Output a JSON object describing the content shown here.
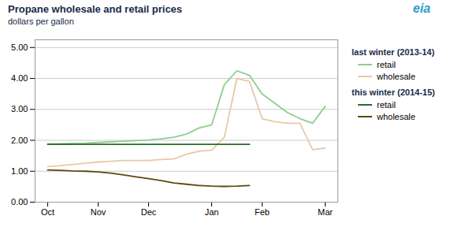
{
  "chart_data": {
    "type": "line",
    "title": "Propane wholesale and retail prices",
    "subtitle": "dollars per gallon",
    "annotation": "eia",
    "categories": [
      "Oct",
      null,
      null,
      null,
      "Nov",
      null,
      null,
      null,
      "Dec",
      null,
      null,
      null,
      null,
      "Jan",
      null,
      null,
      null,
      "Feb",
      null,
      null,
      null,
      null,
      "Mar"
    ],
    "series": [
      {
        "name": "retail",
        "group": "last winter (2013-14)",
        "color": "#8fce8f",
        "values": [
          1.88,
          1.89,
          1.9,
          1.91,
          1.93,
          1.95,
          1.97,
          1.99,
          2.01,
          2.05,
          2.1,
          2.2,
          2.4,
          2.5,
          3.8,
          4.25,
          4.1,
          3.5,
          3.2,
          2.9,
          2.7,
          2.55,
          3.1
        ]
      },
      {
        "name": "wholesale",
        "group": "last winter (2013-14)",
        "color": "#e8c8a8",
        "values": [
          1.15,
          1.18,
          1.22,
          1.26,
          1.3,
          1.32,
          1.35,
          1.35,
          1.35,
          1.38,
          1.4,
          1.55,
          1.65,
          1.68,
          2.1,
          4.0,
          3.9,
          2.7,
          2.6,
          2.55,
          2.55,
          1.7,
          1.75
        ]
      },
      {
        "name": "retail",
        "group": "this winter (2014-15)",
        "color": "#2d6b2d",
        "values": [
          1.87,
          1.87,
          1.87,
          1.87,
          1.87,
          1.87,
          1.87,
          1.87,
          1.87,
          1.87,
          1.87,
          1.87,
          1.87,
          1.87,
          1.87,
          1.87,
          1.87,
          null,
          null,
          null,
          null,
          null,
          null
        ]
      },
      {
        "name": "wholesale",
        "group": "this winter (2014-15)",
        "color": "#5a4a10",
        "values": [
          1.04,
          1.03,
          1.01,
          1.0,
          0.98,
          0.94,
          0.88,
          0.82,
          0.76,
          0.7,
          0.62,
          0.58,
          0.54,
          0.52,
          0.51,
          0.52,
          0.54,
          null,
          null,
          null,
          null,
          null,
          null
        ]
      }
    ],
    "ylim": [
      0.0,
      5.25
    ],
    "yticks": [
      {
        "value": 0.0,
        "label": "0.00"
      },
      {
        "value": 1.0,
        "label": "1.00"
      },
      {
        "value": 2.0,
        "label": "2.00"
      },
      {
        "value": 3.0,
        "label": "3.00"
      },
      {
        "value": 4.0,
        "label": "4.00"
      },
      {
        "value": 5.0,
        "label": "5.00"
      }
    ],
    "grid": true
  }
}
